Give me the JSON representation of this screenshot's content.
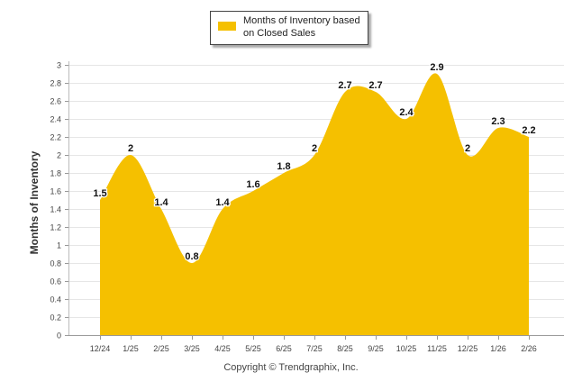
{
  "chart_data": {
    "type": "area",
    "legend": "Months of Inventory based on Closed Sales",
    "ylabel": "Months of Inventory",
    "xlabel": "",
    "ylim": [
      0,
      3
    ],
    "yticks": [
      "0",
      "0.2",
      "0.4",
      "0.6",
      "0.8",
      "1",
      "1.2",
      "1.4",
      "1.6",
      "1.8",
      "2",
      "2.2",
      "2.4",
      "2.6",
      "2.8",
      "3"
    ],
    "categories": [
      "12/24",
      "1/25",
      "2/25",
      "3/25",
      "4/25",
      "5/25",
      "6/25",
      "7/25",
      "8/25",
      "9/25",
      "10/25",
      "11/25",
      "12/25",
      "1/26",
      "2/26"
    ],
    "values": [
      1.5,
      2,
      1.4,
      0.8,
      1.4,
      1.6,
      1.8,
      2,
      2.7,
      2.7,
      2.4,
      2.9,
      2,
      2.3,
      2.2
    ],
    "labels": [
      "1.5",
      "2",
      "1.4",
      "0.8",
      "1.4",
      "1.6",
      "1.8",
      "2",
      "2.7",
      "2.7",
      "2.4",
      "2.9",
      "2",
      "2.3",
      "2.2"
    ],
    "color": "#f5c000"
  },
  "footer": {
    "copyright": "Copyright © Trendgraphix, Inc."
  }
}
